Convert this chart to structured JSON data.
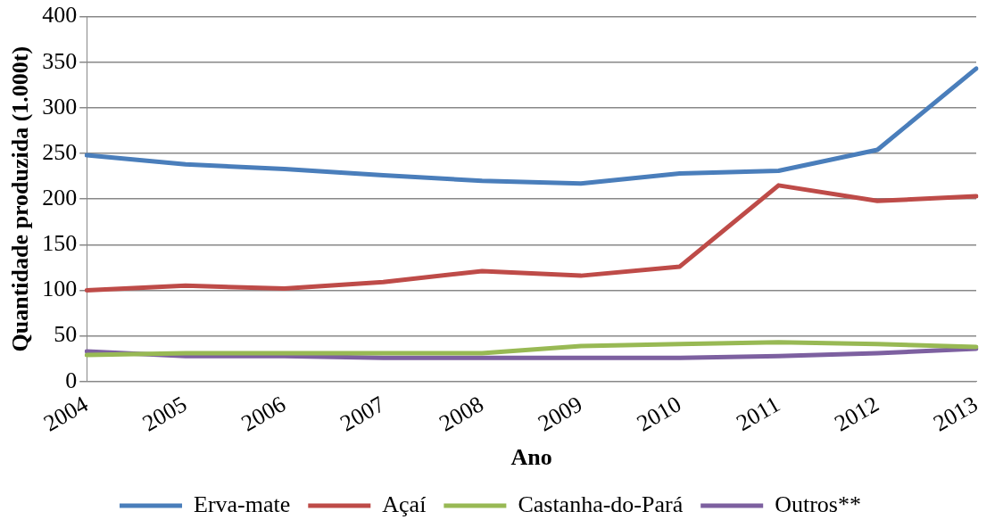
{
  "chart_data": {
    "type": "line",
    "xlabel": "Ano",
    "ylabel": "Quantidade produzida (1.000t)",
    "categories": [
      "2004",
      "2005",
      "2006",
      "2007",
      "2008",
      "2009",
      "2010",
      "2011",
      "2012",
      "2013"
    ],
    "series": [
      {
        "name": "Erva-mate",
        "color": "#4a7ebb",
        "values": [
          248,
          238,
          233,
          226,
          220,
          217,
          228,
          231,
          254,
          343
        ]
      },
      {
        "name": "Açaí",
        "color": "#be4b48",
        "values": [
          100,
          105,
          102,
          109,
          121,
          116,
          126,
          215,
          198,
          203
        ]
      },
      {
        "name": "Castanha-do-Pará",
        "color": "#98b954",
        "values": [
          29,
          31,
          31,
          31,
          31,
          39,
          41,
          43,
          41,
          38
        ]
      },
      {
        "name": "Outros**",
        "color": "#7d60a0",
        "values": [
          33,
          28,
          28,
          26,
          26,
          26,
          26,
          28,
          31,
          36
        ]
      }
    ],
    "ylim": [
      0,
      400
    ],
    "yticks": [
      0,
      50,
      100,
      150,
      200,
      250,
      300,
      350,
      400
    ],
    "grid": "y",
    "legend": "bottom",
    "marker": "none",
    "line_style": "solid"
  }
}
